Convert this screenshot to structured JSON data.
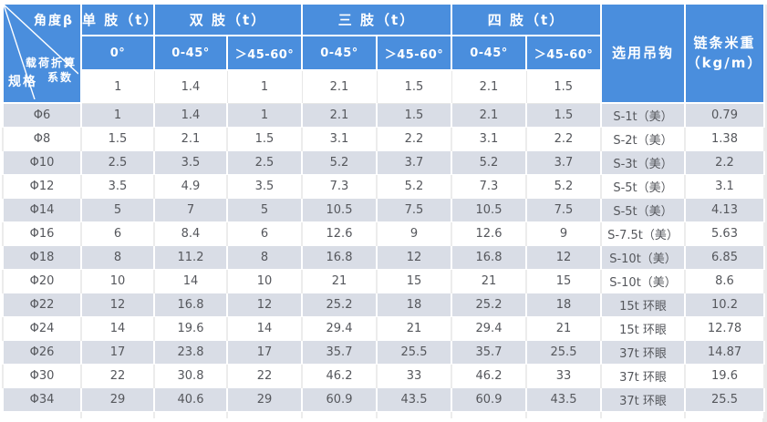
{
  "colors": {
    "header_blue": "#4a8edd",
    "stripe_gray": "#d9dde6",
    "row_white": "#ffffff",
    "header_text": "#ffffff",
    "data_text": "#55575c"
  },
  "table": {
    "corner": {
      "angle_label": "角度β",
      "load_factor_line1": "载荷折算",
      "load_factor_line2": "系数",
      "spec_label": "规格"
    },
    "group_headers": {
      "single": "单 肢（t）",
      "double": "双 肢（t）",
      "triple": "三 肢（t）",
      "quad": "四 肢（t）"
    },
    "angle_headers": [
      "0°",
      "0-45°",
      "＞45-60°",
      "0-45°",
      "＞45-60°",
      "0-45°",
      "＞45-60°"
    ],
    "hook_header": "选用吊钩",
    "weight_header_line1": "链条米重",
    "weight_header_line2": "（kg/m）",
    "coefficients": [
      "1",
      "1.4",
      "1",
      "2.1",
      "1.5",
      "2.1",
      "1.5"
    ],
    "rows": [
      {
        "spec": "Φ6",
        "values": [
          "1",
          "1.4",
          "1",
          "2.1",
          "1.5",
          "2.1",
          "1.5"
        ],
        "hook": "S-1t（美）",
        "weight": "0.79"
      },
      {
        "spec": "Φ8",
        "values": [
          "1.5",
          "2.1",
          "1.5",
          "3.1",
          "2.2",
          "3.1",
          "2.2"
        ],
        "hook": "S-2t（美）",
        "weight": "1.38"
      },
      {
        "spec": "Φ10",
        "values": [
          "2.5",
          "3.5",
          "2.5",
          "5.2",
          "3.7",
          "5.2",
          "3.7"
        ],
        "hook": "S-3t（美）",
        "weight": "2.2"
      },
      {
        "spec": "Φ12",
        "values": [
          "3.5",
          "4.9",
          "3.5",
          "7.3",
          "5.2",
          "7.3",
          "5.2"
        ],
        "hook": "S-5t（美）",
        "weight": "3.1"
      },
      {
        "spec": "Φ14",
        "values": [
          "5",
          "7",
          "5",
          "10.5",
          "7.5",
          "10.5",
          "7.5"
        ],
        "hook": "S-5t（美）",
        "weight": "4.13"
      },
      {
        "spec": "Φ16",
        "values": [
          "6",
          "8.4",
          "6",
          "12.6",
          "9",
          "12.6",
          "9"
        ],
        "hook": "S-7.5t（美）",
        "weight": "5.63"
      },
      {
        "spec": "Φ18",
        "values": [
          "8",
          "11.2",
          "8",
          "16.8",
          "12",
          "16.8",
          "12"
        ],
        "hook": "S-10t（美）",
        "weight": "6.85"
      },
      {
        "spec": "Φ20",
        "values": [
          "10",
          "14",
          "10",
          "21",
          "15",
          "21",
          "15"
        ],
        "hook": "S-10t（美）",
        "weight": "8.6"
      },
      {
        "spec": "Φ22",
        "values": [
          "12",
          "16.8",
          "12",
          "25.2",
          "18",
          "25.2",
          "18"
        ],
        "hook": "15t 环眼",
        "weight": "10.2"
      },
      {
        "spec": "Φ24",
        "values": [
          "14",
          "19.6",
          "14",
          "29.4",
          "21",
          "29.4",
          "21"
        ],
        "hook": "15t 环眼",
        "weight": "12.78"
      },
      {
        "spec": "Φ26",
        "values": [
          "17",
          "23.8",
          "17",
          "35.7",
          "25.5",
          "35.7",
          "25.5"
        ],
        "hook": "37t 环眼",
        "weight": "14.87"
      },
      {
        "spec": "Φ30",
        "values": [
          "22",
          "30.8",
          "22",
          "46.2",
          "33",
          "46.2",
          "33"
        ],
        "hook": "37t 环眼",
        "weight": "19.6"
      },
      {
        "spec": "Φ34",
        "values": [
          "29",
          "40.6",
          "29",
          "60.9",
          "43.5",
          "60.9",
          "43.5"
        ],
        "hook": "37t 环眼",
        "weight": "25.5"
      }
    ]
  }
}
